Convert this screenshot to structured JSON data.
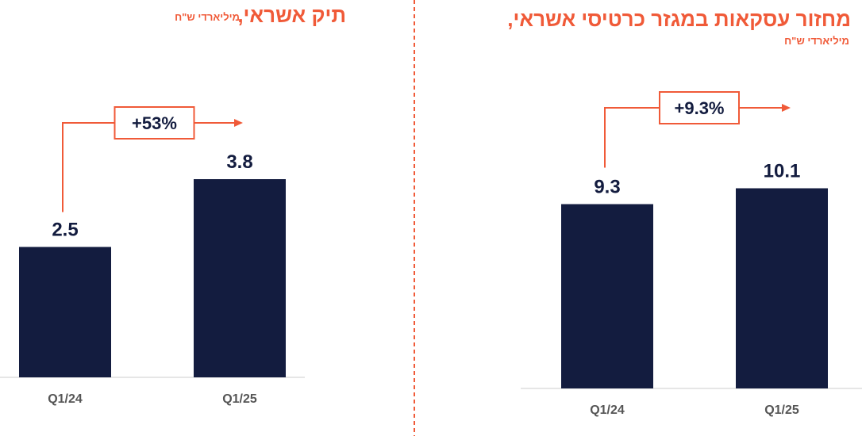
{
  "colors": {
    "accent": "#f05a38",
    "bar": "#131c3f",
    "text_dark": "#131c3f",
    "axis_text": "#555555",
    "baseline": "#cccccc"
  },
  "chart_data": [
    {
      "type": "bar",
      "title": "מחזור עסקאות במגזר כרטיסי אשראי,",
      "unit": "מיליארדי ש\"ח",
      "categories": [
        "Q1/24",
        "Q1/25"
      ],
      "values": [
        9.3,
        10.1
      ],
      "value_labels": [
        "9.3",
        "10.1"
      ],
      "growth_label": "+9.3%",
      "ylim": [
        0,
        12.5
      ]
    },
    {
      "type": "bar",
      "title": "תיק אשראי,",
      "unit": "מיליארדי ש\"ח",
      "categories": [
        "Q1/24",
        "Q1/25"
      ],
      "values": [
        2.5,
        3.8
      ],
      "value_labels": [
        "2.5",
        "3.8"
      ],
      "growth_label": "+53%",
      "ylim": [
        0,
        5.0
      ]
    }
  ]
}
